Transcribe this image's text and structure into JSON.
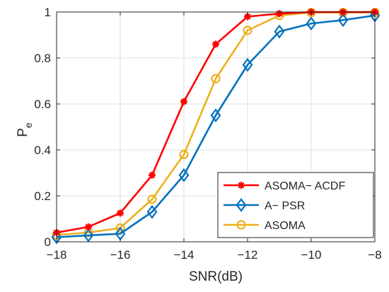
{
  "chart_data": {
    "type": "line",
    "xlabel": "SNR(dB)",
    "ylabel_main": "P",
    "ylabel_sub": "e",
    "xlim": [
      -18,
      -8
    ],
    "ylim": [
      0,
      1
    ],
    "grid": true,
    "legend_position": "bottom-right",
    "xticks": [
      -18,
      -16,
      -14,
      -12,
      -10,
      -8
    ],
    "xtick_labels": [
      "−18",
      "−16",
      "−14",
      "−12",
      "−10",
      "−8"
    ],
    "yticks": [
      0,
      0.2,
      0.4,
      0.6,
      0.8,
      1
    ],
    "ytick_labels": [
      "0",
      "0.2",
      "0.4",
      "0.6",
      "0.8",
      "1"
    ],
    "x": [
      -18,
      -17,
      -16,
      -15,
      -14,
      -13,
      -12,
      -11,
      -10,
      -9,
      -8
    ],
    "series": [
      {
        "name": "ASOMA− ACDF",
        "color": "#ff0000",
        "marker": "asterisk",
        "values": [
          0.04,
          0.065,
          0.125,
          0.29,
          0.61,
          0.86,
          0.98,
          0.993,
          1.0,
          1.0,
          1.0
        ]
      },
      {
        "name": "A− PSR",
        "color": "#0072bd",
        "marker": "diamond",
        "values": [
          0.02,
          0.028,
          0.035,
          0.13,
          0.29,
          0.55,
          0.77,
          0.915,
          0.95,
          0.965,
          0.985
        ]
      },
      {
        "name": "ASOMA",
        "color": "#edb120",
        "marker": "circle",
        "values": [
          0.03,
          0.04,
          0.06,
          0.185,
          0.38,
          0.71,
          0.92,
          0.985,
          0.998,
          0.998,
          0.998
        ]
      }
    ]
  }
}
